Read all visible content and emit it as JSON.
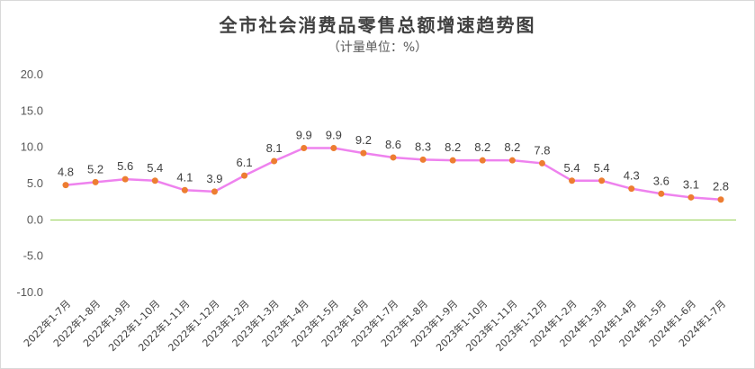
{
  "chart_data": {
    "type": "line",
    "title": "全市社会消费品零售总额增速趋势图",
    "subtitle": "（计量单位：%）",
    "categories": [
      "2022年1-7月",
      "2022年1-8月",
      "2022年1-9月",
      "2022年1-10月",
      "2022年1-11月",
      "2022年1-12月",
      "2023年1-2月",
      "2023年1-3月",
      "2023年1-4月",
      "2023年1-5月",
      "2023年1-6月",
      "2023年1-7月",
      "2023年1-8月",
      "2023年1-9月",
      "2023年1-10月",
      "2023年1-11月",
      "2023年1-12月",
      "2024年1-2月",
      "2024年1-3月",
      "2024年1-4月",
      "2024年1-5月",
      "2024年1-6月",
      "2024年1-7月"
    ],
    "values": [
      4.8,
      5.2,
      5.6,
      5.4,
      4.1,
      3.9,
      6.1,
      8.1,
      9.9,
      9.9,
      9.2,
      8.6,
      8.3,
      8.2,
      8.2,
      8.2,
      7.8,
      5.4,
      5.4,
      4.3,
      3.6,
      3.1,
      2.8
    ],
    "value_labels": [
      "4.8",
      "5.2",
      "5.6",
      "5.4",
      "4.1",
      "3.9",
      "6.1",
      "8.1",
      "9.9",
      "9.9",
      "9.2",
      "8.6",
      "8.3",
      "8.2",
      "8.2",
      "8.2",
      "7.8",
      "5.4",
      "5.4",
      "4.3",
      "3.6",
      "3.1",
      "2.8"
    ],
    "yticks": [
      "20.0",
      "15.0",
      "10.0",
      "5.0",
      "0.0",
      "-5.0",
      "-10.0"
    ],
    "ylim": [
      -10,
      20
    ],
    "grid": false,
    "legend": "none",
    "colors": {
      "line": "#ee82ee",
      "marker": "#ed7d31",
      "zero_line": "#92d050",
      "text": "#595959"
    }
  }
}
